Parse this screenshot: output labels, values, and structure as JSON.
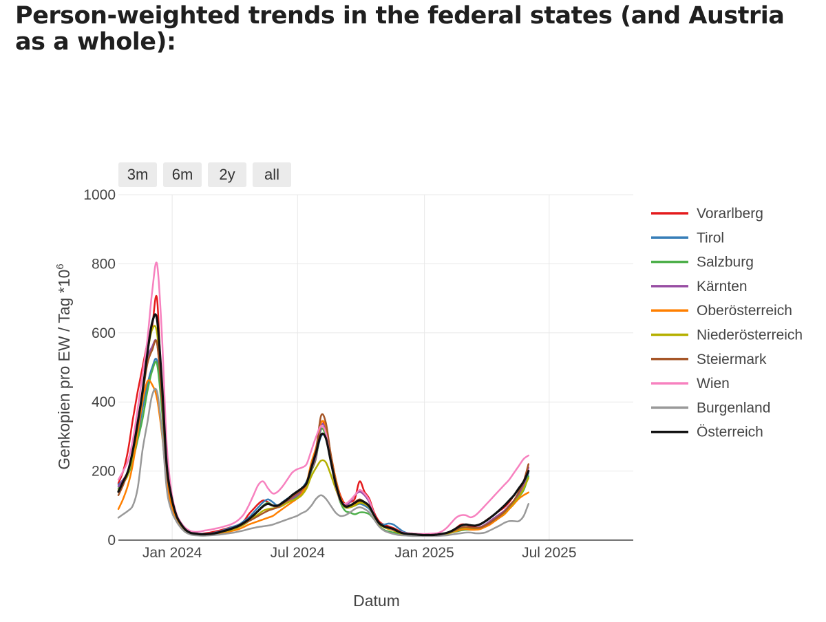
{
  "page": {
    "title": "Person-weighted trends in the federal states (and Austria as a whole):"
  },
  "range_selector": {
    "buttons": [
      {
        "label": "3m"
      },
      {
        "label": "6m"
      },
      {
        "label": "2y"
      },
      {
        "label": "all"
      }
    ]
  },
  "chart_data": {
    "type": "line",
    "title": "",
    "xlabel": "Datum",
    "ylabel": "Genkopien pro EW / Tag *10",
    "ylabel_superscript": "6",
    "x_start": "2023-10-15",
    "x_step_days": 7,
    "xlim": [
      "2023-10-15",
      "2025-10-31"
    ],
    "ylim": [
      0,
      1000
    ],
    "x_ticks": [
      {
        "date": "2024-01-01",
        "label": "Jan 2024"
      },
      {
        "date": "2024-07-01",
        "label": "Jul 2024"
      },
      {
        "date": "2025-01-01",
        "label": "Jan 2025"
      },
      {
        "date": "2025-07-01",
        "label": "Jul 2025"
      }
    ],
    "y_ticks": [
      {
        "value": 0,
        "label": "0"
      },
      {
        "value": 200,
        "label": "200"
      },
      {
        "value": 400,
        "label": "400"
      },
      {
        "value": 600,
        "label": "600"
      },
      {
        "value": 800,
        "label": "800"
      },
      {
        "value": 1000,
        "label": "1000"
      }
    ],
    "grid": true,
    "legend_position": "right",
    "series": [
      {
        "name": "Vorarlberg",
        "color": "#e41a1c",
        "width": 2.5,
        "values": [
          165,
          200,
          260,
          350,
          430,
          500,
          570,
          620,
          700,
          420,
          210,
          120,
          70,
          45,
          28,
          22,
          20,
          18,
          20,
          22,
          25,
          28,
          32,
          36,
          40,
          45,
          55,
          75,
          90,
          105,
          115,
          110,
          100,
          95,
          100,
          110,
          120,
          130,
          140,
          160,
          200,
          240,
          340,
          320,
          250,
          180,
          130,
          105,
          110,
          120,
          170,
          140,
          120,
          80,
          55,
          45,
          40,
          35,
          28,
          22,
          20,
          19,
          18,
          17,
          16,
          16,
          16,
          18,
          20,
          25,
          35,
          45,
          45,
          40,
          40,
          45,
          55,
          65,
          75,
          85,
          95,
          110,
          130,
          150,
          170,
          220
        ]
      },
      {
        "name": "Tirol",
        "color": "#377eb8",
        "width": 2.5,
        "values": [
          160,
          175,
          190,
          240,
          300,
          380,
          450,
          500,
          520,
          400,
          220,
          130,
          75,
          48,
          30,
          22,
          20,
          18,
          18,
          19,
          22,
          25,
          30,
          35,
          40,
          45,
          55,
          65,
          80,
          95,
          110,
          118,
          110,
          100,
          110,
          120,
          130,
          140,
          150,
          170,
          210,
          250,
          300,
          300,
          240,
          170,
          120,
          95,
          95,
          100,
          105,
          100,
          90,
          70,
          50,
          45,
          48,
          45,
          35,
          25,
          20,
          18,
          17,
          16,
          15,
          15,
          15,
          17,
          20,
          25,
          30,
          35,
          38,
          35,
          33,
          35,
          40,
          50,
          60,
          70,
          80,
          95,
          110,
          130,
          150,
          195
        ]
      },
      {
        "name": "Salzburg",
        "color": "#4daf4a",
        "width": 2.5,
        "values": [
          150,
          170,
          190,
          230,
          290,
          350,
          430,
          490,
          510,
          380,
          200,
          120,
          70,
          45,
          28,
          20,
          18,
          16,
          16,
          17,
          19,
          22,
          25,
          28,
          32,
          38,
          45,
          55,
          70,
          85,
          100,
          108,
          100,
          95,
          100,
          110,
          118,
          125,
          135,
          155,
          200,
          240,
          320,
          300,
          230,
          160,
          110,
          85,
          80,
          75,
          80,
          80,
          75,
          60,
          42,
          30,
          25,
          22,
          20,
          18,
          16,
          15,
          15,
          14,
          14,
          14,
          15,
          17,
          20,
          22,
          25,
          28,
          30,
          30,
          32,
          35,
          40,
          48,
          55,
          65,
          75,
          90,
          105,
          125,
          145,
          185
        ]
      },
      {
        "name": "Kärnten",
        "color": "#984ea3",
        "width": 2.5,
        "values": [
          155,
          175,
          200,
          260,
          330,
          420,
          520,
          560,
          570,
          420,
          210,
          125,
          72,
          46,
          30,
          22,
          20,
          18,
          18,
          19,
          21,
          24,
          28,
          32,
          36,
          42,
          50,
          60,
          72,
          85,
          98,
          105,
          100,
          95,
          100,
          110,
          120,
          130,
          140,
          160,
          205,
          245,
          330,
          320,
          240,
          170,
          120,
          100,
          110,
          130,
          140,
          130,
          110,
          75,
          50,
          40,
          36,
          32,
          25,
          20,
          18,
          17,
          16,
          15,
          15,
          15,
          15,
          17,
          20,
          24,
          30,
          36,
          38,
          36,
          35,
          38,
          45,
          55,
          65,
          75,
          85,
          100,
          115,
          135,
          160,
          210
        ]
      },
      {
        "name": "Oberösterreich",
        "color": "#ff7f00",
        "width": 2.5,
        "values": [
          90,
          120,
          160,
          220,
          310,
          400,
          460,
          450,
          410,
          310,
          170,
          100,
          60,
          38,
          24,
          18,
          16,
          15,
          15,
          16,
          18,
          20,
          22,
          25,
          28,
          32,
          38,
          45,
          50,
          55,
          60,
          65,
          70,
          80,
          90,
          100,
          110,
          120,
          135,
          165,
          225,
          270,
          340,
          330,
          250,
          180,
          125,
          100,
          100,
          105,
          110,
          105,
          95,
          70,
          48,
          38,
          32,
          28,
          22,
          18,
          16,
          15,
          14,
          14,
          14,
          14,
          14,
          16,
          18,
          22,
          26,
          30,
          32,
          30,
          30,
          32,
          38,
          45,
          55,
          65,
          75,
          90,
          105,
          120,
          130,
          138
        ]
      },
      {
        "name": "Niederösterreich",
        "color": "#b5b000",
        "width": 2.5,
        "values": [
          145,
          165,
          190,
          250,
          330,
          430,
          540,
          610,
          600,
          420,
          210,
          120,
          70,
          44,
          28,
          20,
          18,
          16,
          16,
          17,
          19,
          22,
          25,
          28,
          32,
          38,
          45,
          55,
          65,
          75,
          85,
          90,
          92,
          95,
          100,
          108,
          115,
          120,
          130,
          150,
          185,
          210,
          230,
          225,
          190,
          150,
          115,
          95,
          95,
          100,
          108,
          105,
          95,
          70,
          48,
          38,
          33,
          28,
          22,
          18,
          16,
          15,
          14,
          14,
          14,
          14,
          15,
          16,
          18,
          22,
          28,
          34,
          36,
          35,
          34,
          36,
          42,
          50,
          60,
          70,
          80,
          95,
          110,
          125,
          150,
          180
        ]
      },
      {
        "name": "Steiermark",
        "color": "#a65628",
        "width": 2.5,
        "values": [
          130,
          160,
          200,
          260,
          330,
          420,
          510,
          550,
          570,
          410,
          205,
          120,
          70,
          45,
          29,
          21,
          19,
          17,
          17,
          18,
          20,
          23,
          26,
          30,
          35,
          40,
          48,
          55,
          62,
          70,
          78,
          85,
          90,
          95,
          105,
          115,
          125,
          135,
          145,
          165,
          215,
          265,
          360,
          340,
          250,
          175,
          120,
          100,
          100,
          110,
          118,
          110,
          100,
          72,
          50,
          40,
          35,
          30,
          24,
          20,
          18,
          17,
          16,
          15,
          15,
          15,
          15,
          17,
          20,
          24,
          30,
          36,
          38,
          36,
          35,
          36,
          42,
          50,
          60,
          70,
          82,
          98,
          115,
          140,
          170,
          220
        ]
      },
      {
        "name": "Wien",
        "color": "#f781bf",
        "width": 2.5,
        "values": [
          175,
          200,
          230,
          290,
          380,
          480,
          580,
          720,
          800,
          600,
          280,
          140,
          78,
          50,
          34,
          26,
          24,
          25,
          28,
          30,
          33,
          36,
          40,
          44,
          50,
          60,
          75,
          100,
          130,
          160,
          170,
          150,
          135,
          140,
          155,
          175,
          195,
          205,
          210,
          220,
          260,
          300,
          330,
          310,
          230,
          160,
          115,
          105,
          115,
          130,
          145,
          135,
          115,
          75,
          50,
          40,
          35,
          30,
          26,
          22,
          20,
          19,
          18,
          18,
          18,
          19,
          20,
          25,
          35,
          50,
          65,
          72,
          72,
          66,
          72,
          85,
          100,
          115,
          130,
          145,
          160,
          175,
          195,
          215,
          235,
          245
        ]
      },
      {
        "name": "Burgenland",
        "color": "#999999",
        "width": 2.5,
        "values": [
          65,
          75,
          85,
          100,
          150,
          260,
          340,
          420,
          430,
          320,
          150,
          85,
          55,
          35,
          22,
          16,
          14,
          13,
          13,
          14,
          15,
          16,
          18,
          20,
          22,
          25,
          28,
          32,
          35,
          38,
          40,
          42,
          45,
          50,
          55,
          60,
          65,
          70,
          78,
          85,
          100,
          120,
          130,
          120,
          100,
          80,
          70,
          72,
          80,
          90,
          95,
          90,
          80,
          60,
          40,
          28,
          22,
          18,
          15,
          14,
          13,
          12,
          12,
          12,
          12,
          12,
          12,
          13,
          14,
          16,
          18,
          20,
          22,
          22,
          20,
          20,
          22,
          28,
          35,
          42,
          50,
          55,
          55,
          55,
          70,
          105
        ]
      },
      {
        "name": "Österreich",
        "color": "#111111",
        "width": 3.2,
        "values": [
          140,
          170,
          200,
          260,
          340,
          430,
          540,
          630,
          640,
          460,
          220,
          125,
          72,
          46,
          29,
          21,
          19,
          17,
          17,
          18,
          20,
          23,
          27,
          31,
          36,
          42,
          50,
          60,
          72,
          85,
          98,
          105,
          100,
          100,
          108,
          118,
          130,
          140,
          150,
          165,
          210,
          255,
          305,
          295,
          230,
          165,
          118,
          98,
          100,
          108,
          115,
          110,
          98,
          72,
          50,
          40,
          36,
          32,
          25,
          20,
          18,
          17,
          16,
          15,
          15,
          15,
          16,
          18,
          21,
          26,
          34,
          42,
          45,
          43,
          42,
          46,
          54,
          64,
          75,
          87,
          100,
          115,
          130,
          150,
          170,
          200
        ]
      }
    ]
  }
}
